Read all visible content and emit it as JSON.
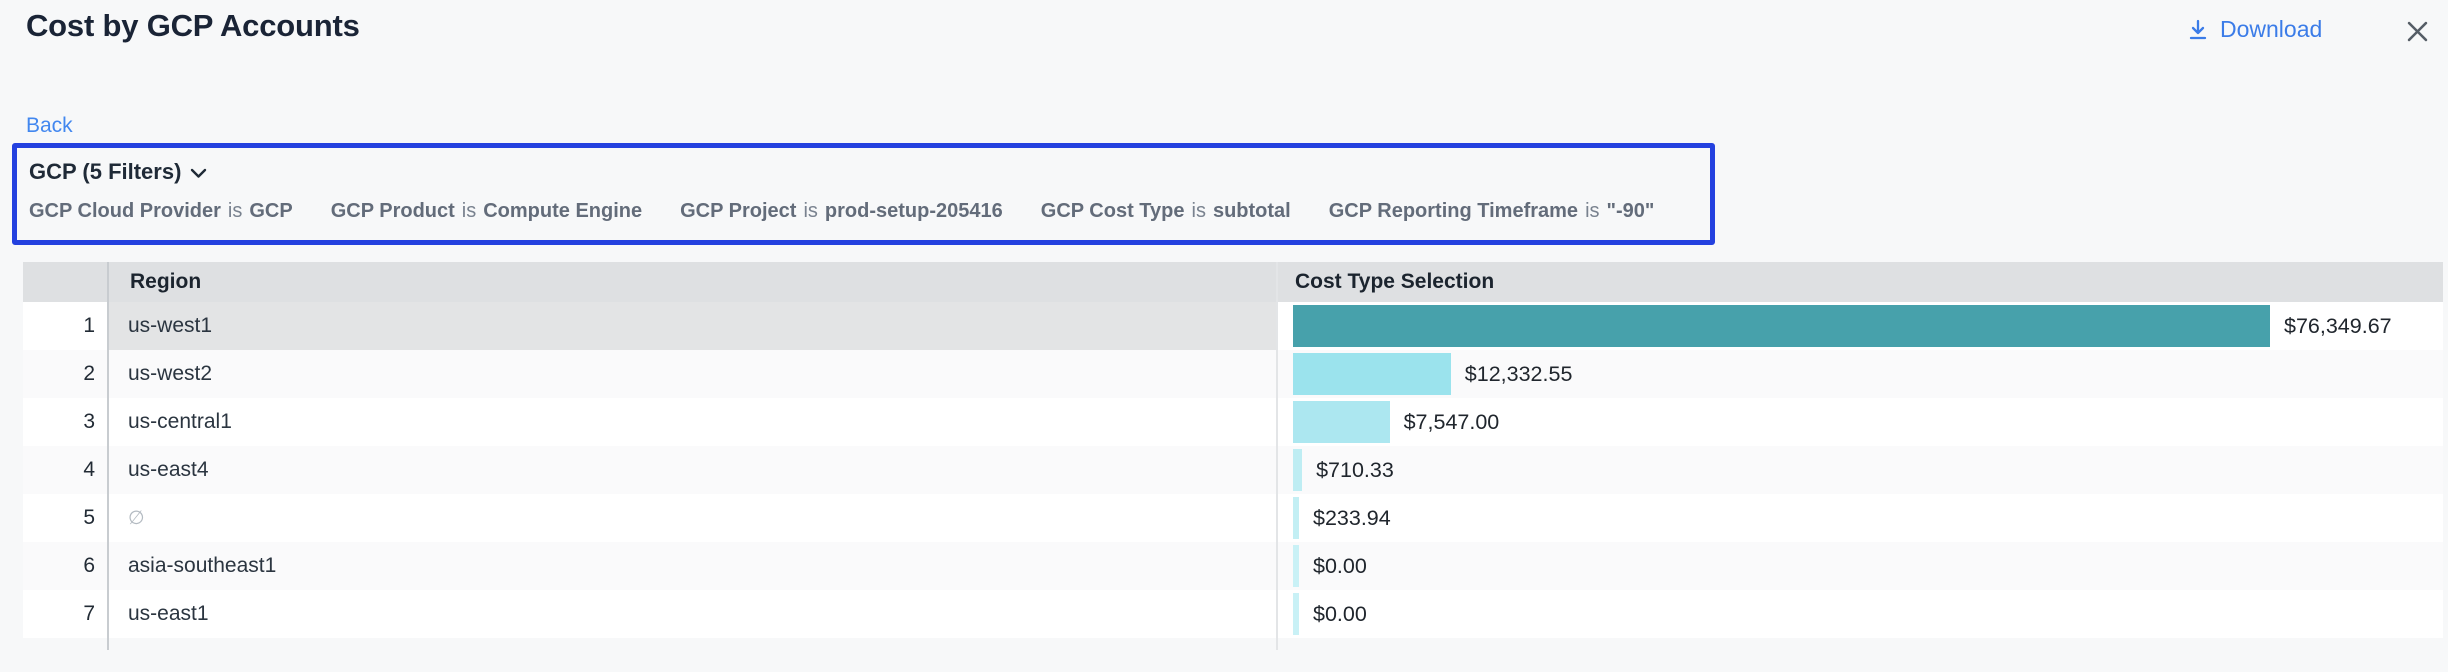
{
  "window": {
    "title": "Cost by GCP Accounts"
  },
  "actions": {
    "download_label": "Download",
    "back_label": "Back"
  },
  "filter_panel": {
    "summary": "GCP (5 Filters)",
    "filters": [
      {
        "name": "GCP Cloud Provider",
        "op": "is",
        "value": "GCP"
      },
      {
        "name": "GCP Product",
        "op": "is",
        "value": "Compute Engine"
      },
      {
        "name": "GCP Project",
        "op": "is",
        "value": "prod-setup-205416"
      },
      {
        "name": "GCP Cost Type",
        "op": "is",
        "value": "subtotal"
      },
      {
        "name": "GCP Reporting Timeframe",
        "op": "is",
        "value": "\"-90\""
      }
    ]
  },
  "table": {
    "columns": [
      "Region",
      "Cost Type Selection"
    ],
    "rows": [
      {
        "row": "1",
        "region": "us-west1",
        "value": 76349.67,
        "label": "$76,349.67",
        "bar_color": "#47a1ab",
        "selected": true
      },
      {
        "row": "2",
        "region": "us-west2",
        "value": 12332.55,
        "label": "$12,332.55",
        "bar_color": "#9be3ed",
        "selected": false
      },
      {
        "row": "3",
        "region": "us-central1",
        "value": 7547.0,
        "label": "$7,547.00",
        "bar_color": "#ace7f0",
        "selected": false
      },
      {
        "row": "4",
        "region": "us-east4",
        "value": 710.33,
        "label": "$710.33",
        "bar_color": "#beedf3",
        "selected": false
      },
      {
        "row": "5",
        "region": "∅",
        "value": 233.94,
        "label": "$233.94",
        "bar_color": "#c3eff4",
        "selected": false
      },
      {
        "row": "6",
        "region": "asia-southeast1",
        "value": 0,
        "label": "$0.00",
        "bar_color": "#c9f1f6",
        "selected": false
      },
      {
        "row": "7",
        "region": "us-east1",
        "value": 0,
        "label": "$0.00",
        "bar_color": "#c9f1f6",
        "selected": false
      }
    ]
  },
  "colors": {
    "accent_box_blue": "#2441df",
    "link_blue": "#3b7ce8",
    "bar_teal_max": "#47a1ab",
    "header_gray": "#dee0e2",
    "page_bg": "#f7f8f9"
  },
  "chart_data": {
    "type": "bar",
    "orientation": "horizontal",
    "title": "Cost by GCP Accounts",
    "categories": [
      "us-west1",
      "us-west2",
      "us-central1",
      "us-east4",
      "∅",
      "asia-southeast1",
      "us-east1"
    ],
    "values": [
      76349.67,
      12332.55,
      7547.0,
      710.33,
      233.94,
      0.0,
      0.0
    ],
    "value_labels": [
      "$76,349.67",
      "$12,332.55",
      "$7,547.00",
      "$710.33",
      "$233.94",
      "$0.00",
      "$0.00"
    ],
    "xlabel": "Cost Type Selection",
    "ylabel": "Region",
    "xlim": [
      0,
      76349.67
    ],
    "grid": false,
    "legend": false
  }
}
